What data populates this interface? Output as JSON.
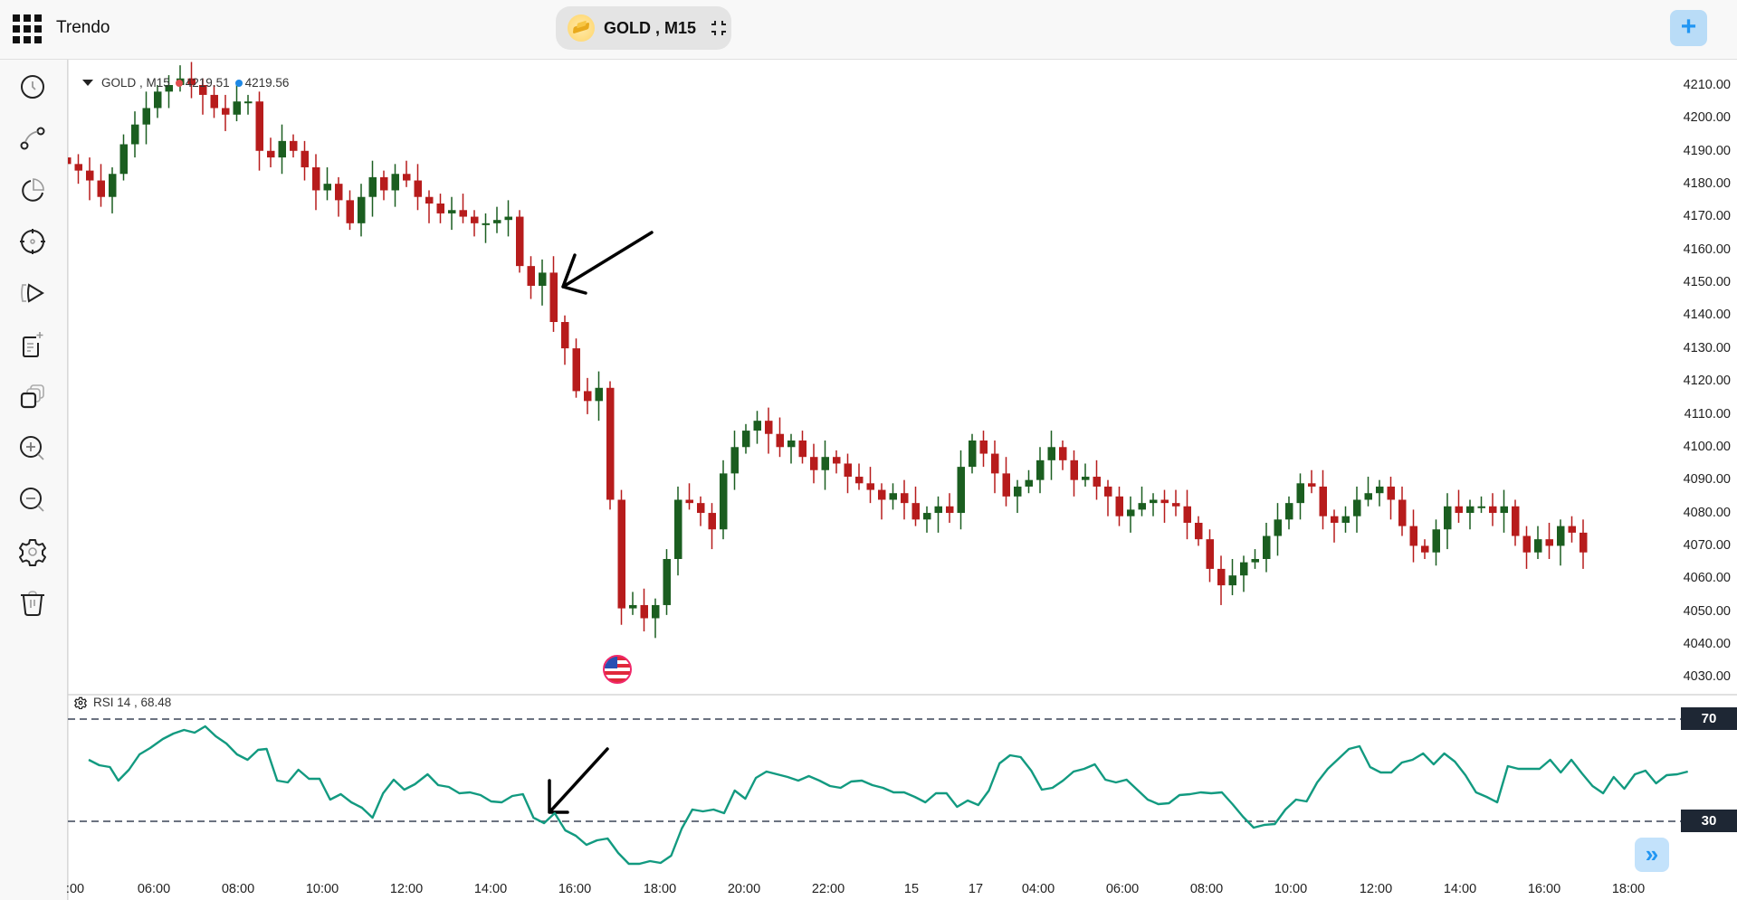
{
  "header": {
    "app_title": "Trendo",
    "symbol_label": "GOLD , M15",
    "add_button_label": "+",
    "icons": {
      "apps": "apps-grid-icon",
      "symbol": "gold-bars-icon",
      "collapse": "collapse-icon",
      "add": "plus-icon"
    }
  },
  "sidebar": {
    "tools": [
      {
        "name": "history-clock-icon"
      },
      {
        "name": "drawing-line-icon"
      },
      {
        "name": "pie-chart-icon"
      },
      {
        "name": "crosshair-icon"
      },
      {
        "name": "replay-icon"
      },
      {
        "name": "add-note-icon"
      },
      {
        "name": "layers-icon"
      },
      {
        "name": "zoom-in-icon"
      },
      {
        "name": "zoom-out-icon"
      },
      {
        "name": "settings-icon"
      },
      {
        "name": "trash-icon"
      }
    ]
  },
  "chart": {
    "legend": {
      "symbol": "GOLD , M15",
      "bid": "4219.51",
      "ask": "4219.56",
      "bid_color": "#e05050",
      "ask_color": "#1e88e5"
    },
    "price_axis": [
      "4210.00",
      "4200.00",
      "4190.00",
      "4180.00",
      "4170.00",
      "4160.00",
      "4150.00",
      "4140.00",
      "4130.00",
      "4120.00",
      "4110.00",
      "4100.00",
      "4090.00",
      "4080.00",
      "4070.00",
      "4060.00",
      "4050.00",
      "4040.00",
      "4030.00"
    ],
    "time_axis": [
      ":00",
      "06:00",
      "08:00",
      "10:00",
      "12:00",
      "14:00",
      "16:00",
      "18:00",
      "20:00",
      "22:00",
      "15",
      "17",
      "04:00",
      "06:00",
      "08:00",
      "10:00",
      "12:00",
      "14:00",
      "16:00",
      "18:00"
    ],
    "colors": {
      "up": "#1b5e20",
      "down": "#b71c1c",
      "rsi_line": "#129a80",
      "level_line": "#6b7280"
    },
    "news_event": {
      "icon": "us-flag-icon"
    },
    "annotations": [
      "arrow-down-left-price",
      "arrow-down-left-rsi"
    ]
  },
  "rsi": {
    "label": "RSI 14 , 68.48",
    "upper_level": "70",
    "lower_level": "30"
  },
  "scroll_button": {
    "label": "»"
  }
}
